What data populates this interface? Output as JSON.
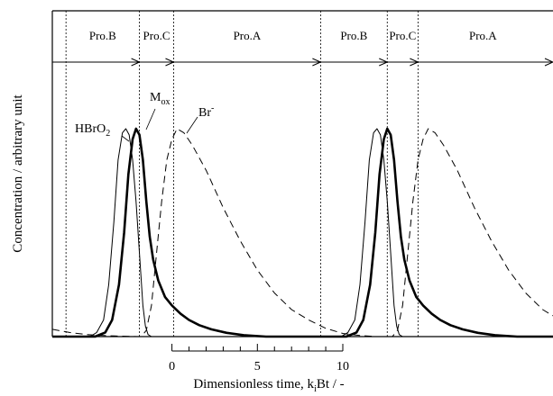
{
  "chart_data": {
    "type": "line",
    "ylabel": "Concentration / arbitrary unit",
    "xlabel": "Dimensionless time, k",
    "xlabel_sub": "i",
    "xlabel_tail": "Bt / -",
    "scale_bar": {
      "ticks": [
        "0",
        "5",
        "10"
      ],
      "range": [
        0,
        10
      ],
      "minor_step": 1
    },
    "phases": [
      {
        "label": "Pro.B",
        "start": -6.2,
        "end": -1.9
      },
      {
        "label": "Pro.C",
        "start": -1.9,
        "end": 0.1
      },
      {
        "label": "Pro.A",
        "start": 0.1,
        "end": 8.7
      },
      {
        "label": "Pro.B",
        "start": 8.7,
        "end": 12.6
      },
      {
        "label": "Pro.C",
        "start": 12.6,
        "end": 14.4
      },
      {
        "label": "Pro.A",
        "start": 14.4,
        "end": 22.0
      }
    ],
    "boundaries": [
      -6.2,
      -1.9,
      0.1,
      8.7,
      12.6,
      14.4
    ],
    "x_range": [
      -7.0,
      22.3
    ],
    "y_range": [
      0,
      1
    ],
    "series": [
      {
        "name": "HBrO",
        "name_sub": "2",
        "style": "thin",
        "points": [
          [
            -7.0,
            0.0
          ],
          [
            -4.8,
            0.0
          ],
          [
            -4.4,
            0.02
          ],
          [
            -4.0,
            0.08
          ],
          [
            -3.7,
            0.25
          ],
          [
            -3.4,
            0.55
          ],
          [
            -3.15,
            0.85
          ],
          [
            -2.9,
            0.98
          ],
          [
            -2.7,
            1.0
          ],
          [
            -2.5,
            0.97
          ],
          [
            -2.3,
            0.85
          ],
          [
            -2.1,
            0.65
          ],
          [
            -1.9,
            0.4
          ],
          [
            -1.7,
            0.15
          ],
          [
            -1.55,
            0.05
          ],
          [
            -1.4,
            0.01
          ],
          [
            -1.2,
            0.0
          ],
          [
            9.9,
            0.0
          ],
          [
            10.3,
            0.02
          ],
          [
            10.7,
            0.08
          ],
          [
            11.0,
            0.25
          ],
          [
            11.3,
            0.55
          ],
          [
            11.55,
            0.85
          ],
          [
            11.8,
            0.98
          ],
          [
            12.0,
            1.0
          ],
          [
            12.2,
            0.97
          ],
          [
            12.4,
            0.85
          ],
          [
            12.6,
            0.65
          ],
          [
            12.8,
            0.4
          ],
          [
            13.0,
            0.15
          ],
          [
            13.15,
            0.05
          ],
          [
            13.3,
            0.01
          ],
          [
            13.5,
            0.0
          ],
          [
            22.3,
            0.0
          ]
        ]
      },
      {
        "name": "M",
        "name_sub": "ox",
        "style": "bold",
        "points": [
          [
            -7.0,
            0.0
          ],
          [
            -4.5,
            0.0
          ],
          [
            -3.9,
            0.02
          ],
          [
            -3.5,
            0.08
          ],
          [
            -3.1,
            0.25
          ],
          [
            -2.8,
            0.5
          ],
          [
            -2.55,
            0.78
          ],
          [
            -2.3,
            0.95
          ],
          [
            -2.1,
            1.0
          ],
          [
            -1.9,
            0.97
          ],
          [
            -1.7,
            0.85
          ],
          [
            -1.5,
            0.65
          ],
          [
            -1.3,
            0.48
          ],
          [
            -1.1,
            0.37
          ],
          [
            -0.8,
            0.27
          ],
          [
            -0.4,
            0.19
          ],
          [
            0.0,
            0.15
          ],
          [
            0.5,
            0.11
          ],
          [
            1.0,
            0.08
          ],
          [
            1.6,
            0.055
          ],
          [
            2.3,
            0.035
          ],
          [
            3.2,
            0.018
          ],
          [
            4.2,
            0.007
          ],
          [
            5.5,
            0.0
          ],
          [
            10.2,
            0.0
          ],
          [
            10.8,
            0.02
          ],
          [
            11.2,
            0.08
          ],
          [
            11.6,
            0.25
          ],
          [
            11.9,
            0.5
          ],
          [
            12.15,
            0.78
          ],
          [
            12.4,
            0.95
          ],
          [
            12.6,
            1.0
          ],
          [
            12.8,
            0.97
          ],
          [
            13.0,
            0.85
          ],
          [
            13.2,
            0.65
          ],
          [
            13.4,
            0.48
          ],
          [
            13.6,
            0.37
          ],
          [
            13.9,
            0.27
          ],
          [
            14.3,
            0.19
          ],
          [
            14.7,
            0.15
          ],
          [
            15.2,
            0.11
          ],
          [
            15.7,
            0.08
          ],
          [
            16.3,
            0.055
          ],
          [
            17.0,
            0.035
          ],
          [
            17.9,
            0.018
          ],
          [
            18.9,
            0.007
          ],
          [
            20.2,
            0.0
          ],
          [
            22.3,
            0.0
          ]
        ]
      },
      {
        "name": "Br",
        "name_sup": "-",
        "style": "dashed",
        "points": [
          [
            -7.0,
            0.035
          ],
          [
            -6.0,
            0.02
          ],
          [
            -5.0,
            0.01
          ],
          [
            -4.0,
            0.005
          ],
          [
            -3.0,
            0.002
          ],
          [
            -2.0,
            0.0
          ],
          [
            -1.8,
            0.0
          ],
          [
            -1.5,
            0.03
          ],
          [
            -1.2,
            0.15
          ],
          [
            -0.9,
            0.4
          ],
          [
            -0.6,
            0.65
          ],
          [
            -0.3,
            0.85
          ],
          [
            0.0,
            0.95
          ],
          [
            0.3,
            1.0
          ],
          [
            0.7,
            0.98
          ],
          [
            1.2,
            0.92
          ],
          [
            2.0,
            0.8
          ],
          [
            3.0,
            0.62
          ],
          [
            4.0,
            0.46
          ],
          [
            5.0,
            0.32
          ],
          [
            6.0,
            0.21
          ],
          [
            7.0,
            0.13
          ],
          [
            8.0,
            0.08
          ],
          [
            9.0,
            0.04
          ],
          [
            10.0,
            0.015
          ],
          [
            11.0,
            0.005
          ],
          [
            12.0,
            0.0
          ],
          [
            12.9,
            0.0
          ],
          [
            13.2,
            0.03
          ],
          [
            13.5,
            0.15
          ],
          [
            13.8,
            0.4
          ],
          [
            14.1,
            0.65
          ],
          [
            14.4,
            0.85
          ],
          [
            14.7,
            0.95
          ],
          [
            15.0,
            1.0
          ],
          [
            15.4,
            0.98
          ],
          [
            15.9,
            0.92
          ],
          [
            16.7,
            0.8
          ],
          [
            17.7,
            0.62
          ],
          [
            18.7,
            0.46
          ],
          [
            19.7,
            0.32
          ],
          [
            20.7,
            0.21
          ],
          [
            21.7,
            0.13
          ],
          [
            22.3,
            0.1
          ]
        ]
      }
    ]
  }
}
